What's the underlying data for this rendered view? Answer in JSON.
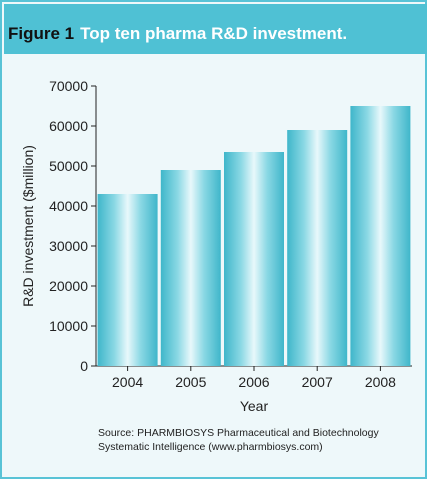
{
  "figure": {
    "label": "Figure 1",
    "title": "Top ten pharma R&D investment."
  },
  "chart_data": {
    "type": "bar",
    "categories": [
      "2004",
      "2005",
      "2006",
      "2007",
      "2008"
    ],
    "values": [
      43000,
      49000,
      53500,
      59000,
      65000
    ],
    "xlabel": "Year",
    "ylabel": "R&D investment ($million)",
    "ylim": [
      0,
      70000
    ],
    "yticks": [
      0,
      10000,
      20000,
      30000,
      40000,
      50000,
      60000,
      70000
    ],
    "grid": false,
    "bar_color": "#4fc1d4"
  },
  "source": {
    "line1": "Source: PHARMBIOSYS Pharmaceutical and Biotechnology",
    "line2": "Systematic Intelligence (www.pharmbiosys.com)"
  }
}
